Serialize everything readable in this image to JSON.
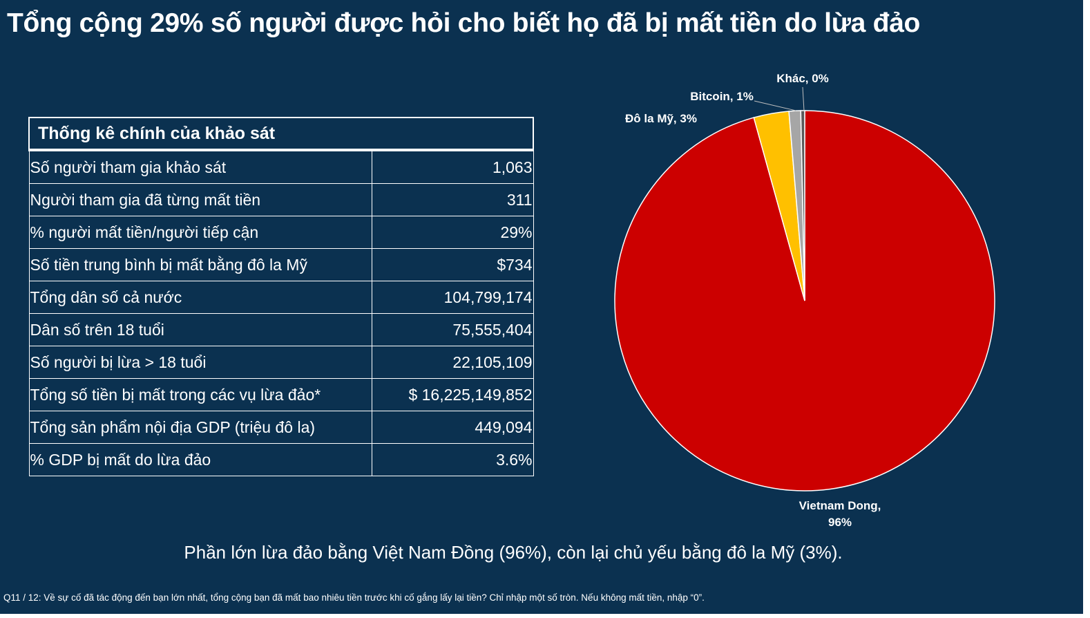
{
  "title": "Tổng cộng 29% số người được hỏi cho biết họ đã bị mất tiền do lừa đảo",
  "table": {
    "header": "Thống kê chính của khảo sát",
    "rows": [
      {
        "label": "Số người tham gia khảo sát",
        "value": "1,063"
      },
      {
        "label": "Người tham gia đã từng mất tiền",
        "value": "311"
      },
      {
        "label": "% người mất tiền/người tiếp cận",
        "value": "29%"
      },
      {
        "label": "Số tiền trung bình bị mất bằng đô la Mỹ",
        "value": "$734"
      },
      {
        "label": "Tổng dân số cả nước",
        "value": "104,799,174"
      },
      {
        "label": "Dân số trên 18 tuổi",
        "value": "75,555,404"
      },
      {
        "label": "Số người bị lừa > 18 tuổi",
        "value": "22,105,109"
      },
      {
        "label": "Tổng số tiền bị mất trong các vụ lừa đảo*",
        "value": "$ 16,225,149,852"
      },
      {
        "label": "Tổng sản phẩm nội địa GDP (triệu đô la)",
        "value": "449,094"
      },
      {
        "label": "% GDP bị mất do lừa đảo",
        "value": "3.6%"
      }
    ]
  },
  "chart_data": {
    "type": "pie",
    "title": "",
    "slices": [
      {
        "name": "Vietnam Dong",
        "value": 96,
        "label_lines": [
          "Vietnam Dong,",
          "96%"
        ],
        "color": "#cc0000"
      },
      {
        "name": "Đô la Mỹ",
        "value": 3,
        "label_lines": [
          "Đô la Mỹ, 3%"
        ],
        "color": "#ffc000"
      },
      {
        "name": "Bitcoin",
        "value": 1,
        "label_lines": [
          "Bitcoin, 1%"
        ],
        "color": "#a6a6a6"
      },
      {
        "name": "Khác",
        "value": 0,
        "label_lines": [
          "Khác, 0%"
        ],
        "color": "#5a5a5a"
      }
    ]
  },
  "subtitle": "Phần lớn lừa đảo bằng Việt Nam Đồng (96%), còn lại chủ yếu bằng đô la Mỹ (3%).",
  "footnote": "Q11 / 12: Về sự cố đã tác động đến bạn lớn nhất, tổng cộng bạn đã mất bao nhiêu tiền trước khi cố gắng lấy lại tiền? Chỉ nhập một số tròn. Nếu không mất tiền, nhập “0”."
}
